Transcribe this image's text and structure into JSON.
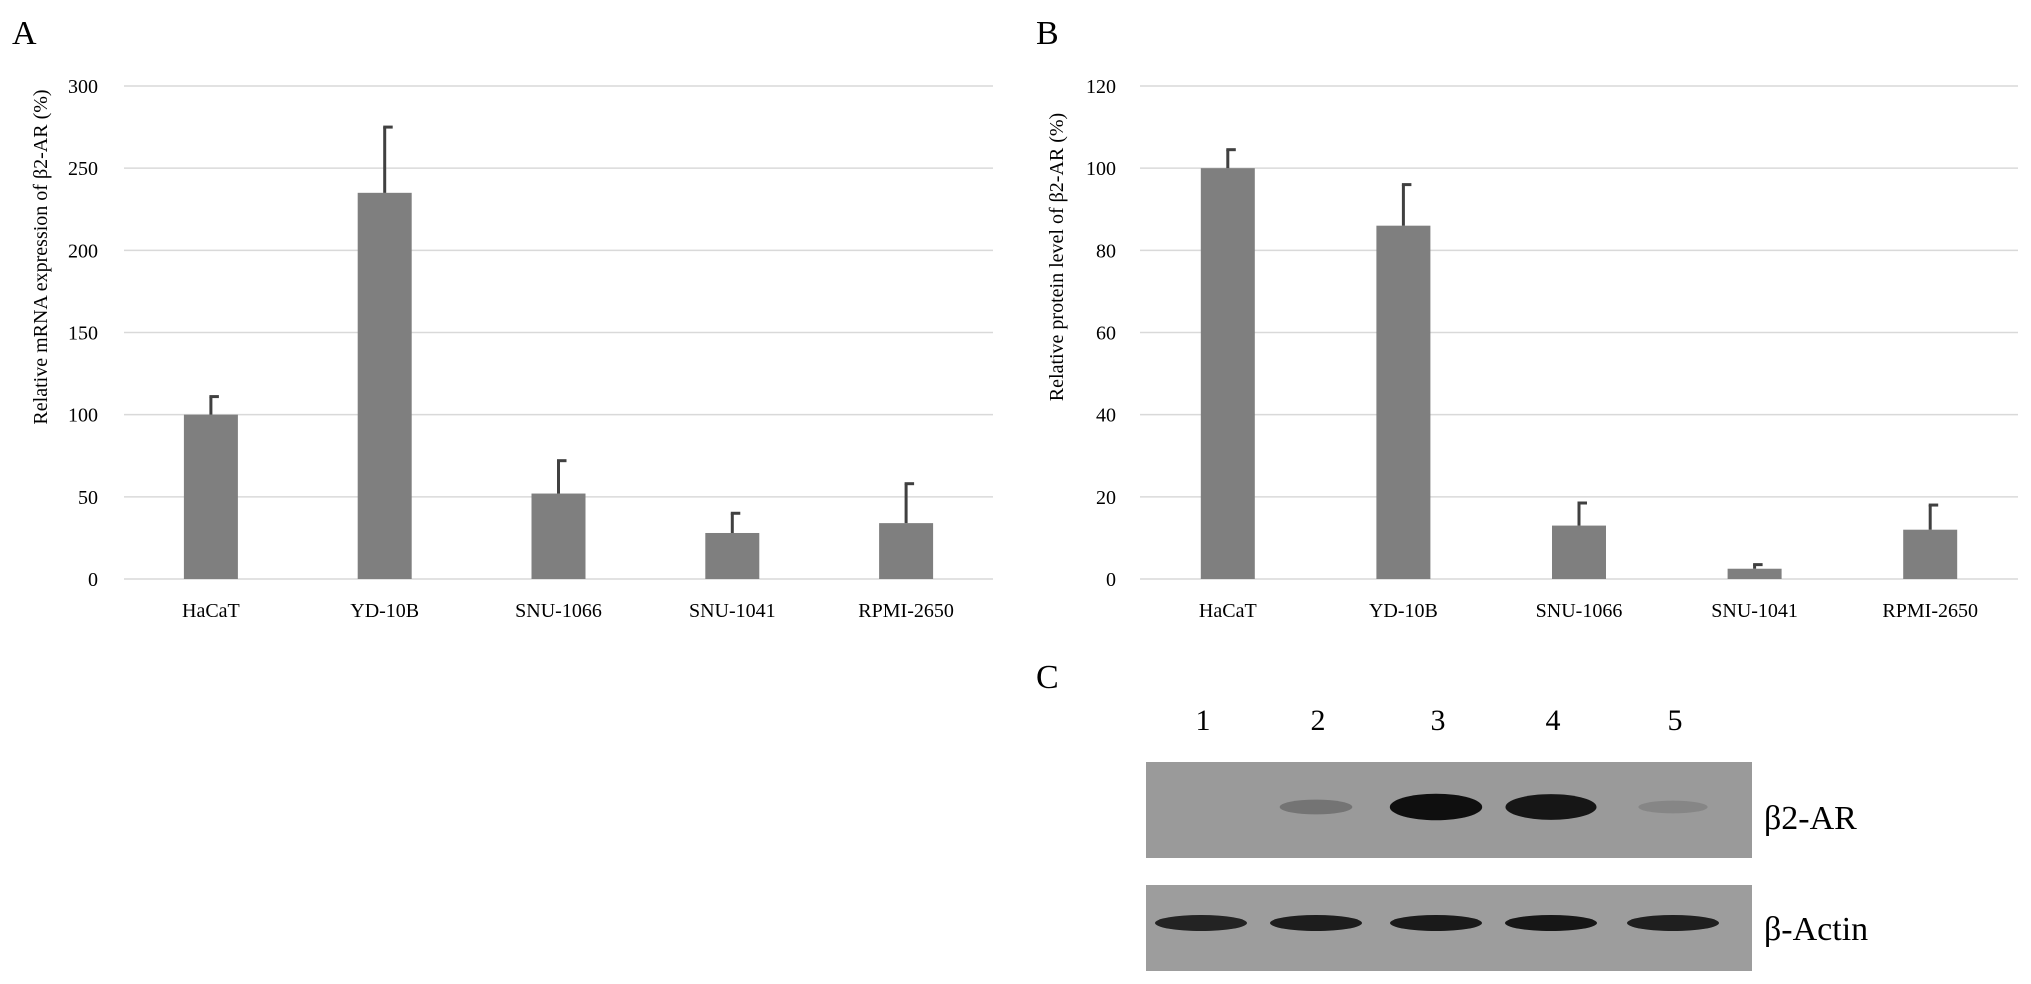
{
  "colors": {
    "bar": "#7f7f7f",
    "error": "#404040",
    "grid": "#d9d9d9"
  },
  "chart_data": [
    {
      "panel": "A",
      "type": "bar",
      "categories": [
        "HaCaT",
        "YD-10B",
        "SNU-1066",
        "SNU-1041",
        "RPMI-2650"
      ],
      "values": [
        100,
        235,
        52,
        28,
        34
      ],
      "errors": [
        11,
        40,
        20,
        12,
        24
      ],
      "ylabel": "Relative mRNA expression of β2-AR (%)",
      "ylim": [
        0,
        300
      ],
      "yticks": [
        0,
        50,
        100,
        150,
        200,
        250,
        300
      ],
      "grid": true
    },
    {
      "panel": "B",
      "type": "bar",
      "categories": [
        "HaCaT",
        "YD-10B",
        "SNU-1066",
        "SNU-1041",
        "RPMI-2650"
      ],
      "values": [
        100,
        86,
        13,
        2.5,
        12
      ],
      "errors": [
        4.5,
        10,
        5.5,
        1,
        6
      ],
      "ylabel": "Relative protein level of β2-AR (%)",
      "ylim": [
        0,
        120
      ],
      "yticks": [
        0,
        20,
        40,
        60,
        80,
        100,
        120
      ],
      "grid": true
    }
  ],
  "blot": {
    "panel": "C",
    "lanes": [
      "1",
      "2",
      "3",
      "4",
      "5"
    ],
    "rows": [
      {
        "label": "β2-AR",
        "intensities": [
          0.0,
          0.25,
          1.0,
          0.95,
          0.12
        ]
      },
      {
        "label": "β-Actin",
        "intensities": [
          0.85,
          0.9,
          0.92,
          0.95,
          0.88
        ]
      }
    ]
  }
}
